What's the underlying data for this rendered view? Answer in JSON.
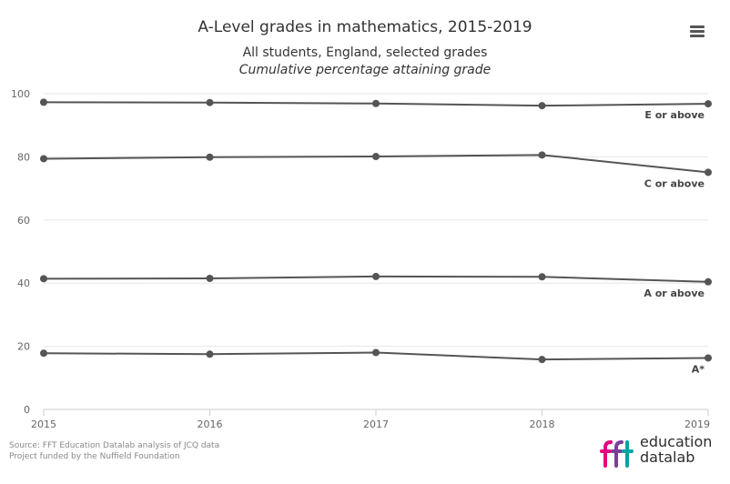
{
  "chart_data": {
    "type": "line",
    "title": "A-Level grades in mathematics, 2015-2019",
    "subtitle": "All students, England, selected grades",
    "subtitle2": "Cumulative percentage attaining grade",
    "x": [
      2015,
      2016,
      2017,
      2018,
      2019
    ],
    "x_tick_labels": [
      "2015",
      "2016",
      "2017",
      "2018",
      "2019"
    ],
    "y_ticks": [
      0,
      20,
      40,
      60,
      80,
      100
    ],
    "y_tick_labels": [
      "0",
      "20",
      "40",
      "60",
      "80",
      "100"
    ],
    "ylim": [
      0,
      100
    ],
    "grid": true,
    "line_color": "#555555",
    "series": [
      {
        "name": "E or above",
        "values": [
          97.3,
          97.2,
          96.9,
          96.2,
          96.8
        ]
      },
      {
        "name": "C or above",
        "values": [
          79.4,
          79.9,
          80.1,
          80.6,
          75.1
        ]
      },
      {
        "name": "A or above",
        "values": [
          41.4,
          41.5,
          42.1,
          42.0,
          40.4
        ]
      },
      {
        "name": "A*",
        "values": [
          17.8,
          17.5,
          18.0,
          15.8,
          16.3
        ]
      }
    ]
  },
  "footer": {
    "source_line1": "Source: FFT Education Datalab analysis of JCQ data",
    "source_line2": "Project funded by the Nuffield Foundation"
  },
  "logo": {
    "text_line1": "education",
    "text_line2": "datalab",
    "colors": [
      "#e6007e",
      "#7b3f98",
      "#00a3a6"
    ]
  },
  "menu_icon": "hamburger-menu-icon"
}
